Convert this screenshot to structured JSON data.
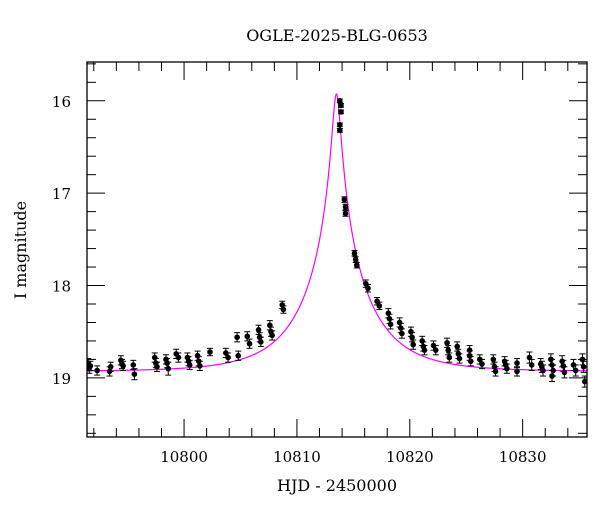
{
  "chart_data": {
    "type": "scatter",
    "title": "OGLE-2025-BLG-0653",
    "xlabel": "HJD - 2450000",
    "ylabel": "I magnitude",
    "xlim": [
      10791.4,
      10835.7
    ],
    "ylim": [
      19.64,
      15.58
    ],
    "y_inverted": true,
    "x_ticks": [
      10800,
      10810,
      10820,
      10830
    ],
    "y_ticks": [
      16,
      17,
      18,
      19
    ],
    "x_minor_step": 2,
    "y_minor_step": 0.2,
    "grid": false,
    "colors": {
      "points": "#000000",
      "model": "#ff00ff"
    },
    "model": {
      "t0": 10813.5,
      "u0": 0.063,
      "tE": 5.56,
      "I_base": 18.93
    },
    "points": [
      [
        10791.5,
        18.84,
        0.05
      ],
      [
        10791.6,
        18.9,
        0.05
      ],
      [
        10791.7,
        18.87,
        0.05
      ],
      [
        10792.3,
        18.92,
        0.05
      ],
      [
        10793.4,
        18.93,
        0.05
      ],
      [
        10793.5,
        18.88,
        0.05
      ],
      [
        10794.4,
        18.81,
        0.05
      ],
      [
        10794.5,
        18.85,
        0.05
      ],
      [
        10794.6,
        18.87,
        0.05
      ],
      [
        10795.5,
        18.86,
        0.05
      ],
      [
        10795.6,
        18.96,
        0.06
      ],
      [
        10797.4,
        18.78,
        0.05
      ],
      [
        10797.5,
        18.84,
        0.05
      ],
      [
        10797.6,
        18.88,
        0.05
      ],
      [
        10798.4,
        18.8,
        0.05
      ],
      [
        10798.5,
        18.84,
        0.05
      ],
      [
        10798.6,
        18.9,
        0.07
      ],
      [
        10799.3,
        18.74,
        0.05
      ],
      [
        10799.5,
        18.78,
        0.05
      ],
      [
        10800.3,
        18.78,
        0.05
      ],
      [
        10800.4,
        18.82,
        0.05
      ],
      [
        10800.5,
        18.86,
        0.05
      ],
      [
        10801.2,
        18.76,
        0.05
      ],
      [
        10801.3,
        18.82,
        0.05
      ],
      [
        10801.4,
        18.87,
        0.05
      ],
      [
        10802.3,
        18.72,
        0.04
      ],
      [
        10803.7,
        18.73,
        0.05
      ],
      [
        10803.9,
        18.78,
        0.05
      ],
      [
        10804.7,
        18.56,
        0.05
      ],
      [
        10804.8,
        18.76,
        0.05
      ],
      [
        10805.6,
        18.55,
        0.05
      ],
      [
        10805.8,
        18.63,
        0.05
      ],
      [
        10806.6,
        18.48,
        0.05
      ],
      [
        10806.7,
        18.56,
        0.05
      ],
      [
        10806.8,
        18.61,
        0.05
      ],
      [
        10807.6,
        18.43,
        0.05
      ],
      [
        10807.7,
        18.5,
        0.05
      ],
      [
        10807.8,
        18.54,
        0.05
      ],
      [
        10808.7,
        18.21,
        0.04
      ],
      [
        10808.8,
        18.26,
        0.04
      ],
      [
        10813.8,
        16.0,
        0.02
      ],
      [
        10813.9,
        16.05,
        0.02
      ],
      [
        10813.9,
        16.12,
        0.02
      ],
      [
        10813.8,
        16.26,
        0.02
      ],
      [
        10813.8,
        16.32,
        0.02
      ],
      [
        10814.2,
        17.07,
        0.03
      ],
      [
        10814.3,
        17.15,
        0.03
      ],
      [
        10814.3,
        17.22,
        0.03
      ],
      [
        10815.1,
        17.65,
        0.03
      ],
      [
        10815.2,
        17.72,
        0.03
      ],
      [
        10815.3,
        17.78,
        0.03
      ],
      [
        10816.1,
        17.98,
        0.04
      ],
      [
        10816.3,
        18.03,
        0.04
      ],
      [
        10817.1,
        18.17,
        0.04
      ],
      [
        10817.3,
        18.22,
        0.04
      ],
      [
        10818.1,
        18.3,
        0.05
      ],
      [
        10818.2,
        18.36,
        0.05
      ],
      [
        10818.3,
        18.42,
        0.05
      ],
      [
        10819.1,
        18.4,
        0.05
      ],
      [
        10819.2,
        18.46,
        0.05
      ],
      [
        10819.3,
        18.52,
        0.05
      ],
      [
        10820.1,
        18.5,
        0.05
      ],
      [
        10820.2,
        18.56,
        0.05
      ],
      [
        10820.3,
        18.64,
        0.05
      ],
      [
        10821.1,
        18.6,
        0.05
      ],
      [
        10821.2,
        18.66,
        0.05
      ],
      [
        10821.3,
        18.7,
        0.05
      ],
      [
        10822.1,
        18.65,
        0.05
      ],
      [
        10822.3,
        18.7,
        0.05
      ],
      [
        10823.3,
        18.62,
        0.05
      ],
      [
        10823.4,
        18.7,
        0.05
      ],
      [
        10823.5,
        18.78,
        0.05
      ],
      [
        10824.2,
        18.66,
        0.05
      ],
      [
        10824.3,
        18.74,
        0.05
      ],
      [
        10824.4,
        18.79,
        0.05
      ],
      [
        10825.3,
        18.7,
        0.05
      ],
      [
        10825.3,
        18.76,
        0.05
      ],
      [
        10825.4,
        18.82,
        0.05
      ],
      [
        10826.2,
        18.8,
        0.05
      ],
      [
        10826.4,
        18.85,
        0.05
      ],
      [
        10827.4,
        18.8,
        0.05
      ],
      [
        10827.5,
        18.88,
        0.05
      ],
      [
        10827.6,
        18.93,
        0.05
      ],
      [
        10828.4,
        18.82,
        0.05
      ],
      [
        10828.5,
        18.86,
        0.05
      ],
      [
        10828.6,
        18.9,
        0.05
      ],
      [
        10829.5,
        18.84,
        0.05
      ],
      [
        10829.5,
        18.93,
        0.05
      ],
      [
        10830.6,
        18.78,
        0.06
      ],
      [
        10830.8,
        18.86,
        0.06
      ],
      [
        10831.6,
        18.85,
        0.06
      ],
      [
        10831.7,
        18.88,
        0.06
      ],
      [
        10831.8,
        18.92,
        0.06
      ],
      [
        10832.5,
        18.8,
        0.06
      ],
      [
        10832.6,
        18.86,
        0.06
      ],
      [
        10832.7,
        18.92,
        0.06
      ],
      [
        10832.6,
        18.98,
        0.06
      ],
      [
        10833.5,
        18.82,
        0.06
      ],
      [
        10833.6,
        18.87,
        0.06
      ],
      [
        10833.7,
        18.94,
        0.06
      ],
      [
        10834.5,
        18.86,
        0.06
      ],
      [
        10834.7,
        18.92,
        0.06
      ],
      [
        10835.3,
        18.8,
        0.06
      ],
      [
        10835.4,
        18.88,
        0.06
      ],
      [
        10835.5,
        19.04,
        0.06
      ]
    ]
  }
}
